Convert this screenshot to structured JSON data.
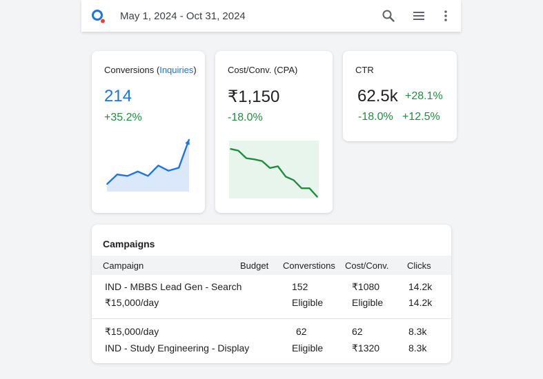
{
  "header": {
    "date_range": "May 1, 2024 - Oct 31, 2024",
    "icons": [
      "search-icon",
      "menu-icon",
      "more-vert-icon"
    ],
    "logo": "google-ads-logo"
  },
  "cards": {
    "conversions": {
      "title_prefix": "Conversions (",
      "title_link": "Inquiries",
      "title_suffix": ")",
      "value": "214",
      "change": "+35.2%",
      "trend": [
        10,
        23,
        21,
        27,
        21,
        35,
        28,
        32,
        70
      ],
      "color": "#1a73e8"
    },
    "cpa": {
      "title": "Cost/Conv. (CPA)",
      "value": "₹1,150",
      "change": "-18.0%",
      "trend": [
        88,
        85,
        72,
        70,
        67,
        55,
        58,
        40,
        34,
        20,
        20,
        5
      ],
      "color": "#1e8e3e"
    },
    "ctr": {
      "title": "CTR",
      "value": "62.5k",
      "change1": "+28.1%",
      "change2": "-18.0%",
      "change3": "+12.5%"
    }
  },
  "campaigns": {
    "title": "Campaigns",
    "columns": {
      "campaign": "Campaign",
      "budget": "Budget",
      "conversions": "Converstions",
      "cost_conv": "Cost/Conv.",
      "clicks": "Clicks"
    },
    "rows": [
      {
        "line1": "IND - MBBS Lead Gen - Search",
        "line2": "₹15,000/day",
        "conv1": "152",
        "conv2": "Eligible",
        "cost1": "₹1080",
        "cost2": "Eligible",
        "clicks1": "14.2k",
        "clicks2": "14.2k"
      },
      {
        "line1": "₹15,000/day",
        "line2": "IND - Study Engineering - Display",
        "conv1": "62",
        "conv2": "Eligible",
        "cost1": "62",
        "cost2": "₹1320",
        "clicks1": "8.3k",
        "clicks2": "8.3k"
      }
    ]
  }
}
